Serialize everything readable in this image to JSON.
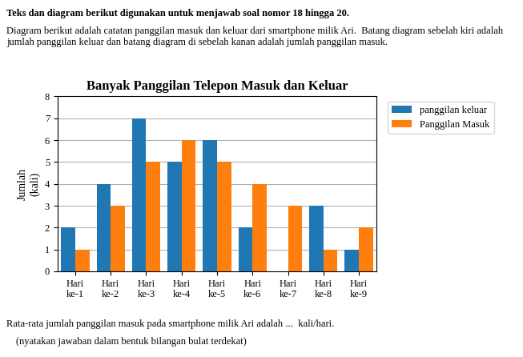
{
  "chart_data": {
    "type": "bar",
    "title": "Banyak Panggilan Telepon Masuk dan Keluar",
    "annotations": [
      "Teks dan diagram berikut digunakan untuk menjawab soal nomor 18 hingga 20.",
      "Diagram berikut adalah catatan panggilan masuk dan keluar dari smartphone milik Ari.  Batang diagram sebelah kiri adalah jumlah panggilan keluar dan batang diagram di sebelah kanan adalah jumlah panggilan masuk.",
      "Rata-rata jumlah panggilan masuk pada smartphone milik Ari adalah ...  kali/hari.",
      "(nyatakan jawaban dalam bentuk bilangan bulat terdekat)"
    ],
    "categories": [
      "Hari\nke-1",
      "Hari\nke-2",
      "Hari\nke-3",
      "Hari\nke-4",
      "Hari\nke-5",
      "Hari\nke-6",
      "Hari\nke-7",
      "Hari\nke-8",
      "Hari\nke-9"
    ],
    "series": [
      {
        "name": "panggilan keluar",
        "values": [
          2,
          4,
          7,
          5,
          6,
          2,
          0,
          3,
          1
        ]
      },
      {
        "name": "Panggilan Masuk",
        "values": [
          1,
          3,
          5,
          6,
          5,
          4,
          3,
          1,
          2
        ]
      }
    ],
    "ylabel": "Jumlah\n(kali)",
    "ylim": [
      0,
      8
    ],
    "yticks": [
      0,
      1,
      2,
      3,
      4,
      5,
      6,
      7,
      8
    ],
    "grid": true,
    "legend": "upper left"
  }
}
